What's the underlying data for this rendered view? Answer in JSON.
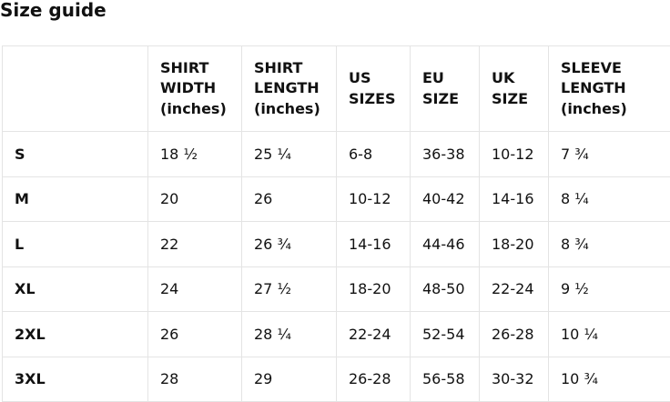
{
  "title": "Size guide",
  "table": {
    "headers": [
      "",
      "SHIRT WIDTH (inches)",
      "SHIRT LENGTH (inches)",
      "US SIZES",
      "EU SIZE",
      "UK SIZE",
      "SLEEVE LENGTH (inches)"
    ],
    "rows": [
      [
        "S",
        "18 ½",
        "25 ¼",
        "6-8",
        "36-38",
        "10-12",
        "7 ¾"
      ],
      [
        "M",
        "20",
        "26",
        "10-12",
        "40-42",
        "14-16",
        "8 ¼"
      ],
      [
        "L",
        "22",
        "26 ¾",
        "14-16",
        "44-46",
        "18-20",
        "8 ¾"
      ],
      [
        "XL",
        "24",
        "27 ½",
        "18-20",
        "48-50",
        "22-24",
        "9 ½"
      ],
      [
        "2XL",
        "26",
        "28 ¼",
        "22-24",
        "52-54",
        "26-28",
        "10 ¼"
      ],
      [
        "3XL",
        "28",
        "29",
        "26-28",
        "56-58",
        "30-32",
        "10 ¾"
      ]
    ]
  }
}
